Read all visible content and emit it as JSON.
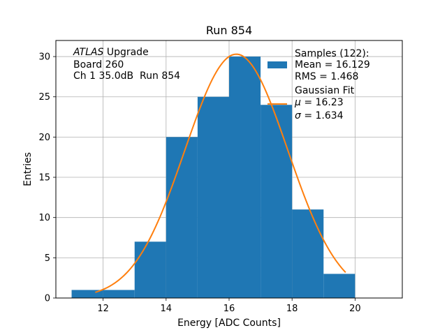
{
  "chart_data": {
    "type": "bar",
    "title": "Run 854",
    "xlabel": "Energy [ADC Counts]",
    "ylabel": "Entries",
    "xlim": [
      10.5,
      21.5
    ],
    "ylim": [
      0,
      32
    ],
    "grid": true,
    "xticks": [
      12,
      14,
      16,
      18,
      20
    ],
    "yticks": [
      0,
      5,
      10,
      15,
      20,
      25,
      30
    ],
    "histogram": {
      "name": "Samples",
      "bins": [
        {
          "x0": 11,
          "x1": 12,
          "count": 1
        },
        {
          "x0": 12,
          "x1": 13,
          "count": 1
        },
        {
          "x0": 13,
          "x1": 14,
          "count": 7
        },
        {
          "x0": 14,
          "x1": 15,
          "count": 20
        },
        {
          "x0": 15,
          "x1": 16,
          "count": 25
        },
        {
          "x0": 16,
          "x1": 17,
          "count": 30
        },
        {
          "x0": 17,
          "x1": 18,
          "count": 24
        },
        {
          "x0": 18,
          "x1": 19,
          "count": 11
        },
        {
          "x0": 19,
          "x1": 20,
          "count": 3
        }
      ],
      "color": "#1f77b4"
    },
    "fit": {
      "name": "Gaussian Fit",
      "mu": 16.23,
      "sigma": 1.634,
      "amplitude": 30.3,
      "x_range": [
        11.75,
        19.7
      ],
      "color": "#ff7f0e"
    },
    "annotation": {
      "line1_italic": "ATLAS",
      "line1_rest": " Upgrade",
      "line2": "Board 260",
      "line3": "Ch 1 35.0dB  Run 854"
    },
    "legend": {
      "position": "top-right",
      "samples_title": "Samples (122):",
      "samples_mean": "Mean = 16.129",
      "samples_rms": "RMS = 1.468",
      "fit_title": "Gaussian Fit",
      "fit_mu_symbol": "μ",
      "fit_mu_value": " = 16.23",
      "fit_sigma_symbol": "σ",
      "fit_sigma_value": " = 1.634"
    }
  }
}
